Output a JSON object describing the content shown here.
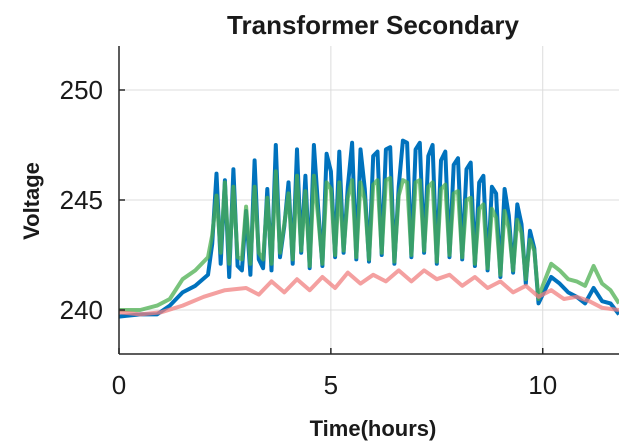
{
  "chart_data": {
    "type": "line",
    "title": "Transformer Secondary",
    "xlabel": "Time(hours)",
    "ylabel": "Voltage",
    "xlim": [
      0,
      11.8
    ],
    "ylim": [
      238,
      252
    ],
    "xticks": [
      0,
      5,
      10
    ],
    "yticks": [
      240,
      245,
      250
    ],
    "grid": true,
    "legend": "none",
    "series": [
      {
        "color": "#0072BD",
        "x": [
          0,
          0.5,
          0.9,
          1.2,
          1.5,
          1.8,
          2.1,
          2.2,
          2.3,
          2.4,
          2.5,
          2.6,
          2.7,
          2.8,
          2.9,
          3.0,
          3.1,
          3.2,
          3.3,
          3.4,
          3.5,
          3.6,
          3.7,
          3.8,
          3.9,
          4.0,
          4.1,
          4.2,
          4.3,
          4.4,
          4.5,
          4.6,
          4.7,
          4.8,
          4.9,
          5.0,
          5.1,
          5.2,
          5.3,
          5.4,
          5.5,
          5.6,
          5.7,
          5.8,
          5.9,
          6.0,
          6.1,
          6.2,
          6.3,
          6.4,
          6.5,
          6.6,
          6.7,
          6.8,
          6.9,
          7.0,
          7.1,
          7.2,
          7.3,
          7.4,
          7.5,
          7.6,
          7.7,
          7.8,
          7.9,
          8.0,
          8.1,
          8.2,
          8.3,
          8.4,
          8.5,
          8.6,
          8.7,
          8.8,
          8.9,
          9.0,
          9.1,
          9.2,
          9.3,
          9.4,
          9.5,
          9.6,
          9.7,
          9.8,
          9.9,
          10.0,
          10.2,
          10.4,
          10.6,
          10.8,
          11.0,
          11.2,
          11.4,
          11.6,
          11.8
        ],
        "y": [
          239.7,
          239.8,
          239.8,
          240.2,
          240.8,
          241.1,
          241.6,
          243.0,
          246.2,
          242.1,
          245.9,
          241.5,
          246.4,
          242.0,
          241.8,
          244.5,
          241.6,
          246.8,
          242.3,
          241.9,
          245.5,
          241.8,
          247.5,
          242.4,
          243.8,
          245.8,
          242.1,
          247.3,
          242.6,
          246.1,
          241.9,
          247.5,
          244.6,
          242.0,
          247.1,
          246.3,
          242.4,
          247.2,
          242.6,
          245.6,
          247.6,
          242.3,
          247.3,
          245.5,
          242.2,
          247.0,
          247.2,
          242.5,
          247.3,
          247.4,
          242.1,
          245.6,
          247.7,
          247.6,
          242.4,
          247.3,
          247.6,
          242.6,
          247.0,
          247.5,
          242.1,
          246.8,
          247.2,
          242.4,
          246.6,
          246.9,
          242.3,
          246.4,
          246.7,
          242.0,
          245.8,
          246.1,
          241.8,
          245.6,
          245.3,
          241.5,
          245.5,
          244.3,
          241.7,
          244.8,
          243.9,
          241.2,
          243.6,
          242.8,
          240.3,
          240.7,
          241.5,
          241.2,
          240.8,
          240.6,
          240.3,
          241.0,
          240.4,
          240.3,
          239.8
        ]
      },
      {
        "color": "#F08080",
        "x": [
          0,
          0.5,
          1.0,
          1.5,
          2.0,
          2.5,
          3.0,
          3.3,
          3.6,
          3.9,
          4.2,
          4.5,
          4.8,
          5.1,
          5.4,
          5.7,
          6.0,
          6.3,
          6.6,
          6.9,
          7.2,
          7.5,
          7.8,
          8.1,
          8.4,
          8.7,
          9.0,
          9.3,
          9.6,
          9.9,
          10.2,
          10.5,
          10.8,
          11.1,
          11.4,
          11.8
        ],
        "y": [
          239.9,
          239.8,
          239.9,
          240.2,
          240.6,
          240.9,
          241.0,
          240.7,
          241.3,
          240.8,
          241.4,
          240.9,
          241.5,
          241.0,
          241.7,
          241.2,
          241.6,
          241.3,
          241.8,
          241.3,
          241.8,
          241.4,
          241.6,
          241.1,
          241.5,
          241.0,
          241.3,
          240.8,
          241.1,
          240.6,
          240.9,
          240.5,
          240.6,
          240.4,
          240.1,
          240.0
        ]
      },
      {
        "color": "#4CAF50",
        "x": [
          0,
          0.5,
          0.9,
          1.2,
          1.5,
          1.8,
          2.1,
          2.2,
          2.3,
          2.4,
          2.5,
          2.6,
          2.7,
          2.8,
          2.9,
          3.0,
          3.1,
          3.2,
          3.3,
          3.4,
          3.5,
          3.6,
          3.7,
          3.8,
          3.9,
          4.0,
          4.1,
          4.2,
          4.3,
          4.4,
          4.5,
          4.6,
          4.7,
          4.8,
          4.9,
          5.0,
          5.1,
          5.2,
          5.3,
          5.4,
          5.5,
          5.6,
          5.7,
          5.8,
          5.9,
          6.0,
          6.1,
          6.2,
          6.3,
          6.4,
          6.5,
          6.6,
          6.7,
          6.8,
          6.9,
          7.0,
          7.1,
          7.2,
          7.3,
          7.4,
          7.5,
          7.6,
          7.7,
          7.8,
          7.9,
          8.0,
          8.1,
          8.2,
          8.3,
          8.4,
          8.5,
          8.6,
          8.7,
          8.8,
          8.9,
          9.0,
          9.1,
          9.2,
          9.3,
          9.4,
          9.5,
          9.6,
          9.7,
          9.8,
          9.9,
          10.0,
          10.2,
          10.4,
          10.6,
          10.8,
          11.0,
          11.2,
          11.4,
          11.6,
          11.8
        ],
        "y": [
          240.0,
          240.0,
          240.2,
          240.5,
          241.4,
          241.8,
          242.4,
          243.4,
          245.2,
          242.6,
          245.8,
          242.1,
          245.6,
          242.4,
          242.3,
          244.7,
          242.1,
          245.6,
          242.6,
          242.3,
          245.1,
          242.1,
          246.3,
          242.6,
          243.9,
          245.3,
          242.3,
          246.1,
          242.7,
          245.4,
          242.0,
          246.1,
          244.2,
          242.1,
          245.8,
          245.5,
          242.5,
          245.8,
          242.7,
          245.1,
          245.9,
          242.4,
          245.8,
          245.0,
          242.3,
          245.7,
          245.9,
          242.6,
          245.9,
          246.0,
          242.2,
          245.2,
          245.9,
          245.8,
          242.5,
          245.8,
          245.9,
          242.7,
          245.6,
          245.8,
          242.2,
          245.5,
          245.7,
          242.5,
          245.3,
          245.4,
          242.4,
          245.0,
          245.1,
          242.1,
          244.6,
          244.8,
          241.9,
          244.6,
          244.2,
          241.6,
          244.5,
          243.7,
          241.8,
          244.1,
          243.5,
          241.4,
          243.2,
          242.7,
          240.5,
          241.1,
          242.1,
          241.8,
          241.4,
          241.3,
          241.1,
          242.0,
          241.2,
          240.9,
          240.3
        ]
      }
    ]
  }
}
